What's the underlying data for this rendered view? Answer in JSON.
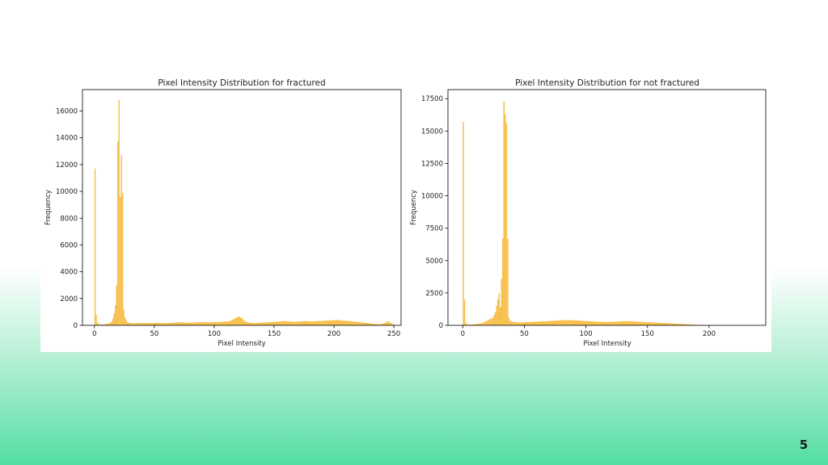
{
  "slide": {
    "page_number": "5"
  },
  "colors": {
    "bar": "#f6b93b",
    "axis": "#000000",
    "text": "#222222"
  },
  "chart_data": [
    {
      "type": "bar",
      "title": "Pixel Intensity Distribution for fractured",
      "xlabel": "Pixel Intensity",
      "ylabel": "Frequency",
      "xlim": [
        -10,
        256
      ],
      "ylim": [
        0,
        17600
      ],
      "xticks": [
        0,
        50,
        100,
        150,
        200,
        250
      ],
      "yticks": [
        0,
        2000,
        4000,
        6000,
        8000,
        10000,
        12000,
        14000,
        16000
      ],
      "ytick_labels": [
        "0",
        "2000",
        "4000",
        "6000",
        "8000",
        "10000",
        "12000",
        "14000",
        "16000"
      ],
      "grid": false,
      "x": [
        0,
        1,
        2,
        3,
        4,
        5,
        6,
        7,
        8,
        9,
        10,
        11,
        12,
        13,
        14,
        15,
        16,
        17,
        18,
        19,
        20,
        21,
        22,
        23,
        24,
        25,
        26,
        27,
        28,
        29,
        30,
        31,
        32,
        33,
        34,
        35,
        36,
        37,
        38,
        39,
        40,
        42,
        44,
        46,
        48,
        50,
        52,
        54,
        56,
        58,
        60,
        62,
        64,
        66,
        68,
        70,
        72,
        74,
        76,
        78,
        80,
        82,
        84,
        86,
        88,
        90,
        92,
        94,
        96,
        98,
        100,
        102,
        104,
        106,
        108,
        110,
        112,
        114,
        116,
        118,
        120,
        122,
        124,
        126,
        128,
        130,
        132,
        134,
        136,
        138,
        140,
        142,
        144,
        146,
        148,
        150,
        152,
        154,
        156,
        158,
        160,
        162,
        164,
        166,
        168,
        170,
        172,
        174,
        176,
        178,
        180,
        182,
        184,
        186,
        188,
        190,
        192,
        194,
        196,
        198,
        200,
        202,
        204,
        206,
        208,
        210,
        212,
        214,
        216,
        218,
        220,
        222,
        224,
        226,
        228,
        230,
        232,
        234,
        236,
        238,
        240,
        242,
        244,
        246,
        248
      ],
      "values": [
        11700,
        800,
        200,
        100,
        80,
        80,
        60,
        70,
        80,
        100,
        120,
        140,
        160,
        200,
        300,
        500,
        900,
        1500,
        3000,
        13700,
        16800,
        9600,
        12700,
        9900,
        1200,
        600,
        400,
        250,
        200,
        180,
        170,
        160,
        150,
        160,
        170,
        180,
        200,
        180,
        170,
        160,
        170,
        180,
        170,
        160,
        170,
        180,
        190,
        180,
        170,
        160,
        170,
        180,
        190,
        200,
        210,
        220,
        230,
        210,
        200,
        190,
        200,
        210,
        220,
        230,
        240,
        250,
        240,
        230,
        220,
        230,
        240,
        250,
        260,
        270,
        280,
        300,
        320,
        400,
        500,
        600,
        650,
        550,
        350,
        250,
        200,
        180,
        170,
        180,
        190,
        200,
        210,
        220,
        230,
        240,
        250,
        260,
        280,
        300,
        310,
        320,
        300,
        290,
        280,
        270,
        280,
        290,
        300,
        310,
        320,
        300,
        290,
        300,
        310,
        320,
        330,
        340,
        350,
        360,
        370,
        380,
        390,
        400,
        380,
        360,
        340,
        330,
        320,
        300,
        280,
        260,
        240,
        220,
        200,
        180,
        160,
        140,
        120,
        100,
        90,
        100,
        150,
        200,
        300,
        200,
        100
      ]
    },
    {
      "type": "bar",
      "title": "Pixel Intensity Distribution for not fractured",
      "xlabel": "Pixel Intensity",
      "ylabel": "Frequency",
      "xlim": [
        -12,
        246
      ],
      "ylim": [
        0,
        18200
      ],
      "xticks": [
        0,
        50,
        100,
        150,
        200
      ],
      "yticks": [
        0,
        2500,
        5000,
        7500,
        10000,
        12500,
        15000,
        17500
      ],
      "ytick_labels": [
        "0",
        "2500",
        "5000",
        "7500",
        "10000",
        "12500",
        "15000",
        "17500"
      ],
      "grid": false,
      "x": [
        0,
        1,
        2,
        3,
        4,
        5,
        6,
        7,
        8,
        9,
        10,
        11,
        12,
        13,
        14,
        15,
        16,
        17,
        18,
        19,
        20,
        21,
        22,
        23,
        24,
        25,
        26,
        27,
        28,
        29,
        30,
        31,
        32,
        33,
        34,
        35,
        36,
        37,
        38,
        39,
        40,
        41,
        42,
        43,
        44,
        46,
        48,
        50,
        52,
        54,
        56,
        58,
        60,
        62,
        64,
        66,
        68,
        70,
        72,
        74,
        76,
        78,
        80,
        82,
        84,
        86,
        88,
        90,
        92,
        94,
        96,
        98,
        100,
        102,
        104,
        106,
        108,
        110,
        112,
        114,
        116,
        118,
        120,
        122,
        124,
        126,
        128,
        130,
        132,
        134,
        136,
        138,
        140,
        142,
        144,
        146,
        148,
        150,
        152,
        154,
        156,
        158,
        160,
        162,
        164,
        166,
        168,
        170,
        172,
        174,
        176,
        178,
        180,
        182,
        184,
        186,
        188,
        190,
        192,
        194,
        196,
        198,
        200
      ],
      "values": [
        15700,
        2000,
        200,
        80,
        60,
        50,
        50,
        60,
        70,
        80,
        90,
        100,
        120,
        140,
        160,
        180,
        200,
        250,
        300,
        350,
        400,
        450,
        500,
        550,
        600,
        800,
        1000,
        1500,
        2000,
        2500,
        1400,
        3600,
        6700,
        17300,
        16300,
        15600,
        6700,
        600,
        350,
        300,
        280,
        260,
        250,
        240,
        230,
        220,
        230,
        240,
        250,
        260,
        270,
        280,
        290,
        300,
        310,
        320,
        330,
        340,
        350,
        360,
        370,
        380,
        390,
        400,
        410,
        400,
        390,
        380,
        370,
        360,
        350,
        340,
        330,
        320,
        310,
        300,
        290,
        280,
        270,
        260,
        250,
        260,
        270,
        280,
        290,
        300,
        310,
        320,
        330,
        320,
        310,
        300,
        290,
        280,
        270,
        260,
        250,
        240,
        230,
        220,
        210,
        200,
        190,
        180,
        170,
        160,
        150,
        140,
        130,
        120,
        110,
        100,
        90,
        80,
        70,
        60,
        50,
        40,
        30,
        20,
        10,
        5,
        2
      ]
    }
  ]
}
